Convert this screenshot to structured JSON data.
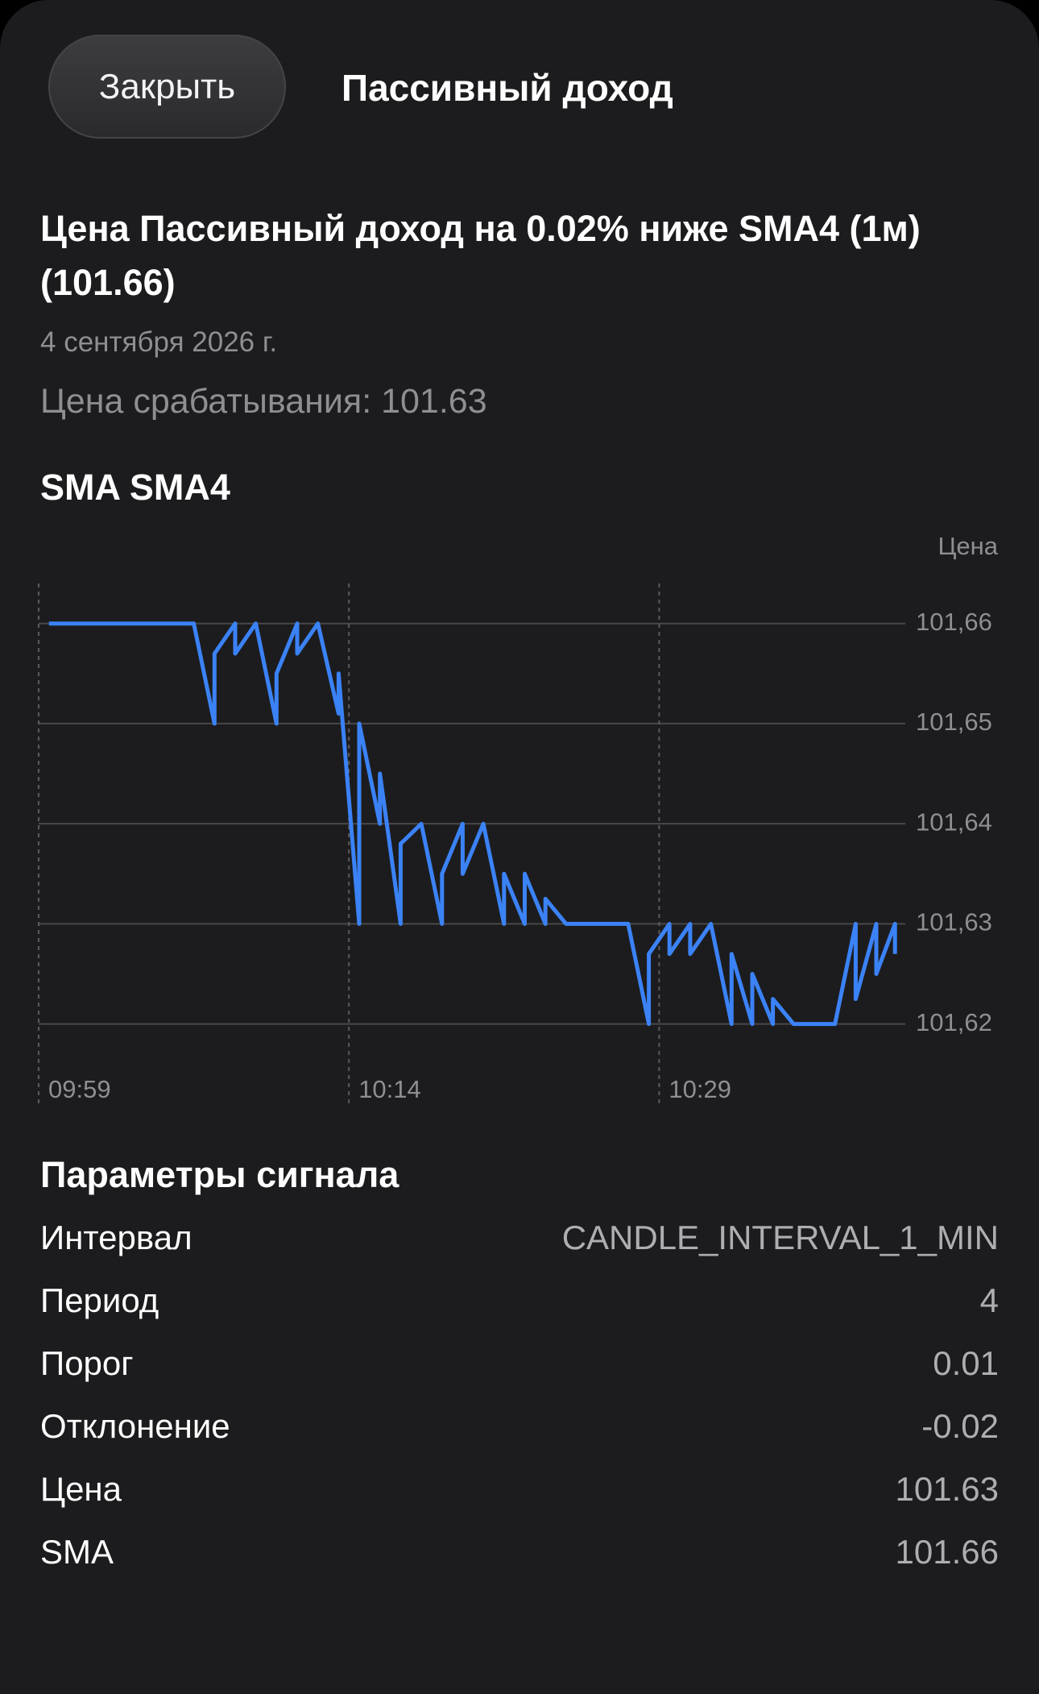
{
  "header": {
    "close_button": "Закрыть",
    "title": "Пассивный доход"
  },
  "alert": {
    "title": "Цена Пассивный доход на 0.02% ниже SMA4 (1м) (101.66)",
    "date": "4 сентября 2026 г.",
    "trigger": "Цена срабатывания: 101.63"
  },
  "chart_data": {
    "type": "line",
    "title": "SMA SMA4",
    "y_label": "Цена",
    "color": "#3b82f6",
    "grid": true,
    "x": [
      0.5,
      7.5,
      8.5,
      8.5,
      9.5,
      9.5,
      10.5,
      11.5,
      11.5,
      12.5,
      12.5,
      13.5,
      14.5,
      14.5,
      14.7,
      15.5,
      15.5,
      16.5,
      16.5,
      17.5,
      17.5,
      18.5,
      19.5,
      19.5,
      20.5,
      20.5,
      21.5,
      22.5,
      22.5,
      23.5,
      23.5,
      24.5,
      24.5,
      25.5,
      28.5,
      29.5,
      29.5,
      30.5,
      30.5,
      31.5,
      31.5,
      32.5,
      33.5,
      33.5,
      34.5,
      34.5,
      35.5,
      35.5,
      36.5,
      38.5,
      39.5,
      39.5,
      40.5,
      40.5,
      41.4,
      41.4
    ],
    "values": [
      101.66,
      101.66,
      101.65,
      101.657,
      101.66,
      101.657,
      101.66,
      101.65,
      101.655,
      101.66,
      101.657,
      101.66,
      101.651,
      101.655,
      101.65,
      101.63,
      101.65,
      101.64,
      101.645,
      101.63,
      101.638,
      101.64,
      101.63,
      101.635,
      101.64,
      101.635,
      101.64,
      101.63,
      101.635,
      101.63,
      101.635,
      101.63,
      101.6325,
      101.63,
      101.63,
      101.62,
      101.627,
      101.63,
      101.627,
      101.63,
      101.627,
      101.63,
      101.62,
      101.627,
      101.62,
      101.625,
      101.62,
      101.6225,
      101.62,
      101.62,
      101.63,
      101.6225,
      101.63,
      101.625,
      101.63,
      101.627
    ],
    "xlim": [
      0,
      41.9
    ],
    "xticks": [
      {
        "value": 0,
        "label": "09:59"
      },
      {
        "value": 15,
        "label": "10:14"
      },
      {
        "value": 30,
        "label": "10:29"
      }
    ],
    "ylim": [
      101.612,
      101.664
    ],
    "yticks": [
      {
        "value": 101.62,
        "label": "101,62"
      },
      {
        "value": 101.63,
        "label": "101,63"
      },
      {
        "value": 101.64,
        "label": "101,64"
      },
      {
        "value": 101.65,
        "label": "101,65"
      },
      {
        "value": 101.66,
        "label": "101,66"
      }
    ]
  },
  "params": {
    "title": "Параметры сигнала",
    "rows": [
      [
        "Интервал",
        "CANDLE_INTERVAL_1_MIN"
      ],
      [
        "Период",
        4
      ],
      [
        "Порог",
        0.01
      ],
      [
        "Отклонение",
        -0.02
      ],
      [
        "Цена",
        101.63
      ],
      [
        "SMA",
        101.66
      ]
    ]
  }
}
